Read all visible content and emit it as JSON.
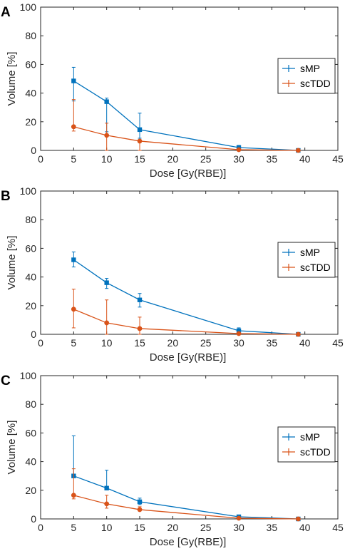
{
  "colors": {
    "smp": "#0072BD",
    "sctdd": "#D95319"
  },
  "chart_data": [
    {
      "panel": "A",
      "type": "line",
      "xlabel": "Dose [Gy(RBE)]",
      "ylabel": "Volume [%]",
      "xlim": [
        0,
        45
      ],
      "ylim": [
        0,
        100
      ],
      "xticks": [
        0,
        5,
        10,
        15,
        20,
        25,
        30,
        35,
        40,
        45
      ],
      "yticks": [
        0,
        20,
        40,
        60,
        80,
        100
      ],
      "legend": {
        "placement": "right",
        "entries": [
          "sMP",
          "scTDD"
        ]
      },
      "series": [
        {
          "name": "sMP",
          "color_key": "smp",
          "marker": "square",
          "x": [
            5,
            10,
            15,
            30,
            39
          ],
          "y": [
            48.5,
            34,
            14.5,
            2,
            0
          ],
          "err_low": [
            14,
            21,
            6,
            2,
            0
          ],
          "err_high": [
            9.5,
            2.5,
            11.5,
            1.5,
            0
          ]
        },
        {
          "name": "scTDD",
          "color_key": "sctdd",
          "marker": "circle",
          "x": [
            5,
            10,
            15,
            30,
            39
          ],
          "y": [
            16.5,
            10.5,
            6.5,
            0.5,
            0
          ],
          "err_low": [
            3,
            10.5,
            6.5,
            0.5,
            0
          ],
          "err_high": [
            19,
            8.5,
            0,
            0,
            0
          ]
        }
      ]
    },
    {
      "panel": "B",
      "type": "line",
      "xlabel": "Dose [Gy(RBE)]",
      "ylabel": "Volume [%]",
      "xlim": [
        0,
        45
      ],
      "ylim": [
        0,
        100
      ],
      "xticks": [
        0,
        5,
        10,
        15,
        20,
        25,
        30,
        35,
        40,
        45
      ],
      "yticks": [
        0,
        20,
        40,
        60,
        80,
        100
      ],
      "legend": {
        "placement": "right",
        "entries": [
          "sMP",
          "scTDD"
        ]
      },
      "series": [
        {
          "name": "sMP",
          "color_key": "smp",
          "marker": "square",
          "x": [
            5,
            10,
            15,
            30,
            39
          ],
          "y": [
            52,
            36,
            24,
            2.5,
            0
          ],
          "err_low": [
            5,
            4,
            5,
            2,
            0
          ],
          "err_high": [
            5.5,
            3,
            4.5,
            2,
            0
          ]
        },
        {
          "name": "scTDD",
          "color_key": "sctdd",
          "marker": "circle",
          "x": [
            5,
            10,
            15,
            30,
            39
          ],
          "y": [
            17.5,
            8,
            4,
            0.5,
            0
          ],
          "err_low": [
            13,
            8,
            4,
            0.5,
            0
          ],
          "err_high": [
            14,
            16,
            8,
            0,
            0
          ]
        }
      ]
    },
    {
      "panel": "C",
      "type": "line",
      "xlabel": "Dose [Gy(RBE)]",
      "ylabel": "Volume [%]",
      "xlim": [
        0,
        45
      ],
      "ylim": [
        0,
        100
      ],
      "xticks": [
        0,
        5,
        10,
        15,
        20,
        25,
        30,
        35,
        40,
        45
      ],
      "yticks": [
        0,
        20,
        40,
        60,
        80,
        100
      ],
      "legend": {
        "placement": "right",
        "entries": [
          "sMP",
          "scTDD"
        ]
      },
      "series": [
        {
          "name": "sMP",
          "color_key": "smp",
          "marker": "square",
          "x": [
            5,
            10,
            15,
            30,
            39
          ],
          "y": [
            30,
            21.5,
            12,
            1.5,
            0
          ],
          "err_low": [
            0,
            0,
            2,
            0,
            0
          ],
          "err_high": [
            28,
            12.5,
            2.5,
            1,
            0
          ]
        },
        {
          "name": "scTDD",
          "color_key": "sctdd",
          "marker": "circle",
          "x": [
            5,
            10,
            15,
            30,
            39
          ],
          "y": [
            16.5,
            10.5,
            6.5,
            0.5,
            0
          ],
          "err_low": [
            2.5,
            3,
            0,
            0.5,
            0
          ],
          "err_high": [
            18.5,
            6,
            2,
            0,
            0
          ]
        }
      ]
    }
  ]
}
